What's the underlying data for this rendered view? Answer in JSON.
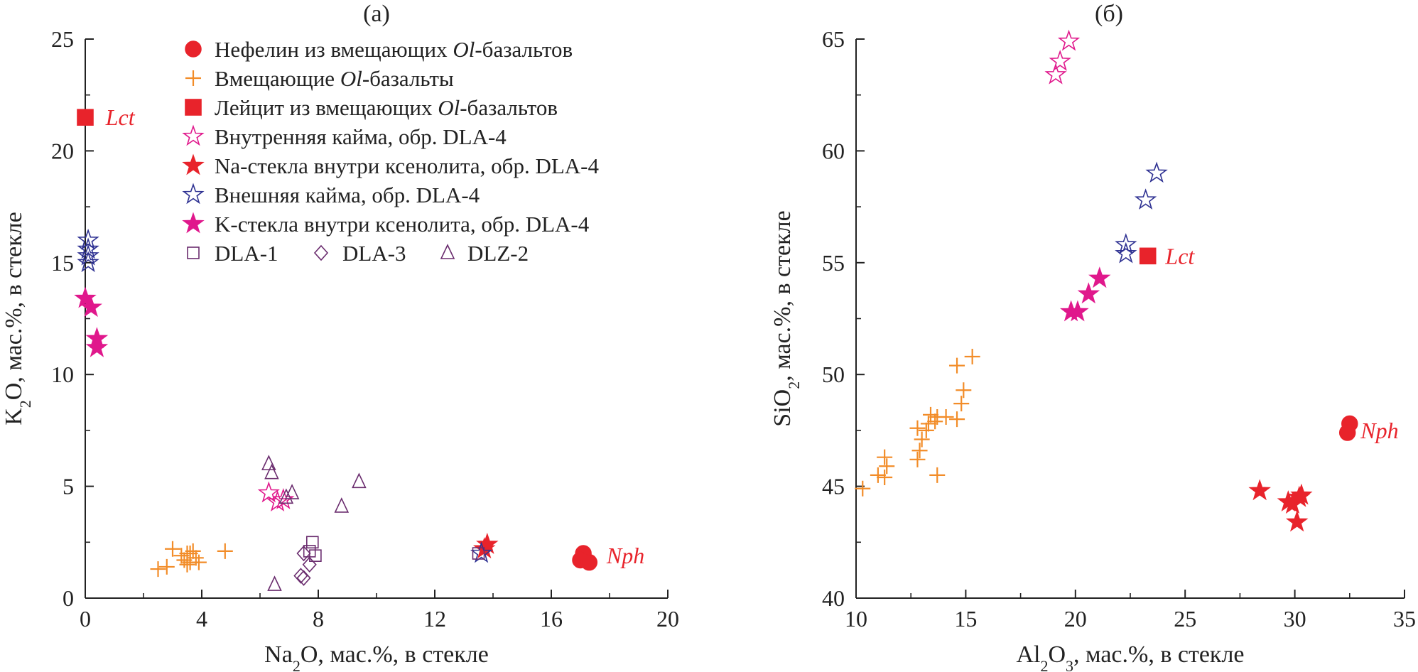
{
  "colors": {
    "axis": "#222222",
    "nepheline": "#e8232b",
    "basalt": "#f28c28",
    "leucite": "#e8232b",
    "inner_rim": "#e0188c",
    "na_glass": "#e8232b",
    "outer_rim": "#2e3192",
    "k_glass": "#e0188c",
    "dla": "#6a2c6e"
  },
  "legend": [
    {
      "key": "nepheline",
      "marker": "circle",
      "color": "#e8232b",
      "filled": true,
      "label_pre": "Нефелин из вмещающих ",
      "label_it": "Ol",
      "label_post": "-базальтов"
    },
    {
      "key": "basalt",
      "marker": "plus",
      "color": "#f28c28",
      "filled": false,
      "label_pre": "Вмещающие ",
      "label_it": "Ol",
      "label_post": "-базальты"
    },
    {
      "key": "leucite",
      "marker": "square",
      "color": "#e8232b",
      "filled": true,
      "label_pre": "Лейцит из вмещающих ",
      "label_it": "Ol",
      "label_post": "-базальтов"
    },
    {
      "key": "inner_rim",
      "marker": "star",
      "color": "#e0188c",
      "filled": false,
      "label_pre": "Внутренняя кайма, обр. DLA-4",
      "label_it": "",
      "label_post": ""
    },
    {
      "key": "na_glass",
      "marker": "star",
      "color": "#e8232b",
      "filled": true,
      "label_pre": "Na-стекла внутри ксенолита, обр. DLA-4",
      "label_it": "",
      "label_post": ""
    },
    {
      "key": "outer_rim",
      "marker": "star",
      "color": "#2e3192",
      "filled": false,
      "label_pre": "Внешняя кайма, обр. DLA-4",
      "label_it": "",
      "label_post": ""
    },
    {
      "key": "k_glass",
      "marker": "star",
      "color": "#e0188c",
      "filled": true,
      "label_pre": "K-стекла внутри ксенолита, обр. DLA-4",
      "label_it": "",
      "label_post": ""
    }
  ],
  "legend_small": [
    {
      "key": "dla1",
      "marker": "square",
      "label": "DLA-1"
    },
    {
      "key": "dla3",
      "marker": "diamond",
      "label": "DLA-3"
    },
    {
      "key": "dlz2",
      "marker": "triangle",
      "label": "DLZ-2"
    }
  ],
  "chart_data": [
    {
      "type": "scatter",
      "title": "(а)",
      "xlabel_parts": [
        "Na",
        "2",
        "O, мас.%, в стекле"
      ],
      "ylabel_parts": [
        "K",
        "2",
        "O, мас.%, в стекле"
      ],
      "xlim": [
        0,
        20
      ],
      "ylim": [
        0,
        25
      ],
      "xticks": [
        0,
        4,
        8,
        12,
        16,
        20
      ],
      "yticks": [
        0,
        5,
        10,
        15,
        20,
        25
      ],
      "annotations": [
        {
          "text": "Lct",
          "x": 0.7,
          "y": 21.5
        },
        {
          "text": "Nph",
          "x": 17.9,
          "y": 1.9
        }
      ],
      "series": [
        {
          "key": "nepheline",
          "points": [
            [
              17.1,
              2.0
            ],
            [
              17.0,
              1.7
            ],
            [
              17.3,
              1.6
            ]
          ]
        },
        {
          "key": "basalt",
          "points": [
            [
              2.5,
              1.3
            ],
            [
              2.8,
              1.4
            ],
            [
              3.0,
              2.2
            ],
            [
              3.3,
              1.9
            ],
            [
              3.5,
              2.0
            ],
            [
              3.4,
              1.7
            ],
            [
              3.6,
              1.6
            ],
            [
              3.7,
              2.1
            ],
            [
              3.8,
              1.8
            ],
            [
              3.9,
              1.6
            ],
            [
              3.6,
              2.0
            ],
            [
              4.8,
              2.1
            ],
            [
              3.5,
              1.5
            ]
          ]
        },
        {
          "key": "leucite",
          "points": [
            [
              0.0,
              21.5
            ]
          ]
        },
        {
          "key": "inner_rim",
          "points": [
            [
              6.3,
              4.7
            ],
            [
              6.6,
              4.3
            ],
            [
              6.8,
              4.4
            ]
          ]
        },
        {
          "key": "na_glass",
          "points": [
            [
              13.7,
              2.2
            ],
            [
              13.8,
              2.4
            ]
          ]
        },
        {
          "key": "outer_rim",
          "points": [
            [
              0.1,
              16.0
            ],
            [
              0.1,
              15.6
            ],
            [
              0.1,
              15.3
            ],
            [
              0.1,
              15.0
            ],
            [
              13.6,
              2.0
            ]
          ]
        },
        {
          "key": "k_glass",
          "points": [
            [
              0.0,
              13.4
            ],
            [
              0.2,
              13.0
            ],
            [
              0.4,
              11.6
            ],
            [
              0.4,
              11.2
            ]
          ]
        },
        {
          "key": "dla1",
          "points": [
            [
              7.8,
              2.5
            ],
            [
              7.7,
              2.1
            ],
            [
              7.9,
              1.9
            ],
            [
              13.5,
              2.0
            ]
          ]
        },
        {
          "key": "dla3",
          "points": [
            [
              7.5,
              2.0
            ],
            [
              7.7,
              1.5
            ],
            [
              7.4,
              1.0
            ],
            [
              7.5,
              0.9
            ]
          ]
        },
        {
          "key": "dlz2",
          "points": [
            [
              6.3,
              6.0
            ],
            [
              6.4,
              5.6
            ],
            [
              6.9,
              4.5
            ],
            [
              7.1,
              4.7
            ],
            [
              8.8,
              4.1
            ],
            [
              9.4,
              5.2
            ],
            [
              6.5,
              0.6
            ]
          ]
        }
      ]
    },
    {
      "type": "scatter",
      "title": "(б)",
      "xlabel_parts": [
        "Al",
        "2",
        "O",
        "3",
        ", мас.%, в стекле"
      ],
      "ylabel_parts": [
        "SiO",
        "2",
        ", мас.%, в стекле"
      ],
      "xlim": [
        10,
        35
      ],
      "ylim": [
        40,
        65
      ],
      "xticks": [
        10,
        15,
        20,
        25,
        30,
        35
      ],
      "yticks": [
        40,
        45,
        50,
        55,
        60,
        65
      ],
      "annotations": [
        {
          "text": "Lct",
          "x": 24.1,
          "y": 55.3
        },
        {
          "text": "Nph",
          "x": 33.0,
          "y": 47.5
        }
      ],
      "series": [
        {
          "key": "nepheline",
          "points": [
            [
              32.5,
              47.8
            ],
            [
              32.4,
              47.4
            ]
          ]
        },
        {
          "key": "basalt",
          "points": [
            [
              10.3,
              44.9
            ],
            [
              11.0,
              45.5
            ],
            [
              11.3,
              45.4
            ],
            [
              11.4,
              45.9
            ],
            [
              11.3,
              46.3
            ],
            [
              12.8,
              46.2
            ],
            [
              12.9,
              46.6
            ],
            [
              13.0,
              47.1
            ],
            [
              12.8,
              47.6
            ],
            [
              13.2,
              47.5
            ],
            [
              13.3,
              47.8
            ],
            [
              13.4,
              48.2
            ],
            [
              13.6,
              47.9
            ],
            [
              13.7,
              48.1
            ],
            [
              14.1,
              48.1
            ],
            [
              14.6,
              48.0
            ],
            [
              14.8,
              48.7
            ],
            [
              14.9,
              49.3
            ],
            [
              14.6,
              50.4
            ],
            [
              15.3,
              50.8
            ],
            [
              13.7,
              45.5
            ]
          ]
        },
        {
          "key": "leucite",
          "points": [
            [
              23.3,
              55.3
            ]
          ]
        },
        {
          "key": "inner_rim",
          "points": [
            [
              19.7,
              64.9
            ],
            [
              19.3,
              64.0
            ],
            [
              19.1,
              63.4
            ]
          ]
        },
        {
          "key": "na_glass",
          "points": [
            [
              28.4,
              44.8
            ],
            [
              29.7,
              44.3
            ],
            [
              29.9,
              44.2
            ],
            [
              30.2,
              44.5
            ],
            [
              30.3,
              44.6
            ],
            [
              30.1,
              43.4
            ]
          ]
        },
        {
          "key": "outer_rim",
          "points": [
            [
              23.7,
              59.0
            ],
            [
              23.2,
              57.8
            ],
            [
              22.3,
              55.8
            ],
            [
              22.3,
              55.4
            ]
          ]
        },
        {
          "key": "k_glass",
          "points": [
            [
              19.8,
              52.8
            ],
            [
              20.1,
              52.8
            ],
            [
              20.6,
              53.6
            ],
            [
              21.1,
              54.3
            ]
          ]
        }
      ]
    }
  ]
}
